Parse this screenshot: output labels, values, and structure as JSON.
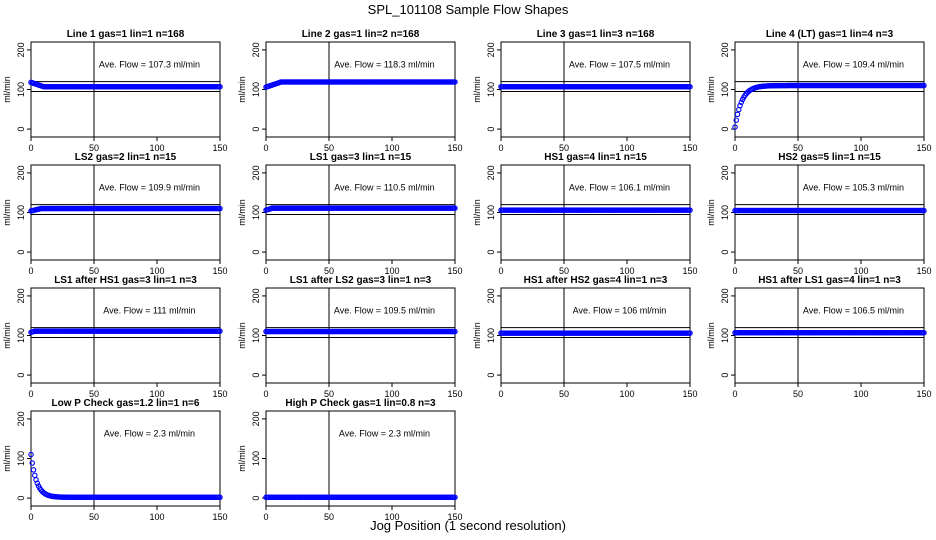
{
  "figure": {
    "title": "SPL_101108  Sample Flow Shapes",
    "xlabel": "Jog Position (1 second resolution)"
  },
  "chart_data": [
    {
      "type": "scatter",
      "title": "Line 1 gas=1 lin=1 n=168",
      "ylabel": "ml/min",
      "annotation": "Ave. Flow =  107.3  ml/min",
      "xlim": [
        0,
        150
      ],
      "ylim": [
        -20,
        220
      ],
      "xticks": [
        0,
        50,
        100,
        150
      ],
      "yticks": [
        0,
        100,
        200
      ],
      "vline": 50,
      "hlines": [
        95,
        120
      ],
      "profile": {
        "kind": "flat",
        "start": 118,
        "plateau": 107,
        "steps": 10
      }
    },
    {
      "type": "scatter",
      "title": "Line 2 gas=1 lin=2 n=168",
      "ylabel": "ml/min",
      "annotation": "Ave. Flow =  118.3  ml/min",
      "xlim": [
        0,
        150
      ],
      "ylim": [
        -20,
        220
      ],
      "xticks": [
        0,
        50,
        100,
        150
      ],
      "yticks": [
        0,
        100,
        200
      ],
      "vline": 50,
      "hlines": [],
      "profile": {
        "kind": "flat",
        "start": 106,
        "plateau": 119,
        "steps": 12
      }
    },
    {
      "type": "scatter",
      "title": "Line 3 gas=1 lin=3 n=168",
      "ylabel": "ml/min",
      "annotation": "Ave. Flow =  107.5  ml/min",
      "xlim": [
        0,
        150
      ],
      "ylim": [
        -20,
        220
      ],
      "xticks": [
        0,
        50,
        100,
        150
      ],
      "yticks": [
        0,
        100,
        200
      ],
      "vline": 50,
      "hlines": [
        95,
        120
      ],
      "profile": {
        "kind": "flat",
        "start": 107,
        "plateau": 107,
        "steps": 1
      }
    },
    {
      "type": "scatter",
      "title": "Line 4 (LT) gas=1 lin=4 n=3",
      "ylabel": "ml/min",
      "annotation": "Ave. Flow =  109.4  ml/min",
      "xlim": [
        0,
        150
      ],
      "ylim": [
        -20,
        220
      ],
      "xticks": [
        0,
        50,
        100,
        150
      ],
      "yticks": [
        0,
        100,
        200
      ],
      "vline": 50,
      "hlines": [
        95,
        120
      ],
      "profile": {
        "kind": "rise",
        "start": 5,
        "plateau": 110,
        "steps": 22
      }
    },
    {
      "type": "scatter",
      "title": "LS2 gas=2 lin=1 n=15",
      "ylabel": "ml/min",
      "annotation": "Ave. Flow =  109.9  ml/min",
      "xlim": [
        0,
        150
      ],
      "ylim": [
        -20,
        220
      ],
      "xticks": [
        0,
        50,
        100,
        150
      ],
      "yticks": [
        0,
        100,
        200
      ],
      "vline": 50,
      "hlines": [
        95,
        120
      ],
      "profile": {
        "kind": "flat",
        "start": 104,
        "plateau": 110,
        "steps": 8
      }
    },
    {
      "type": "scatter",
      "title": "LS1 gas=3 lin=1 n=15",
      "ylabel": "ml/min",
      "annotation": "Ave. Flow =  110.5  ml/min",
      "xlim": [
        0,
        150
      ],
      "ylim": [
        -20,
        220
      ],
      "xticks": [
        0,
        50,
        100,
        150
      ],
      "yticks": [
        0,
        100,
        200
      ],
      "vline": 50,
      "hlines": [
        95,
        120
      ],
      "profile": {
        "kind": "flat",
        "start": 106,
        "plateau": 111,
        "steps": 5
      }
    },
    {
      "type": "scatter",
      "title": "HS1 gas=4 lin=1 n=15",
      "ylabel": "ml/min",
      "annotation": "Ave. Flow =  106.1  ml/min",
      "xlim": [
        0,
        150
      ],
      "ylim": [
        -20,
        220
      ],
      "xticks": [
        0,
        50,
        100,
        150
      ],
      "yticks": [
        0,
        100,
        200
      ],
      "vline": 50,
      "hlines": [
        95,
        120
      ],
      "profile": {
        "kind": "flat",
        "start": 106,
        "plateau": 106,
        "steps": 1
      }
    },
    {
      "type": "scatter",
      "title": "HS2 gas=5 lin=1 n=15",
      "ylabel": "ml/min",
      "annotation": "Ave. Flow =  105.3  ml/min",
      "xlim": [
        0,
        150
      ],
      "ylim": [
        -20,
        220
      ],
      "xticks": [
        0,
        50,
        100,
        150
      ],
      "yticks": [
        0,
        100,
        200
      ],
      "vline": 50,
      "hlines": [
        95,
        120
      ],
      "profile": {
        "kind": "flat",
        "start": 105,
        "plateau": 105,
        "steps": 1
      }
    },
    {
      "type": "scatter",
      "title": "LS1 after HS1 gas=3 lin=1 n=3",
      "ylabel": "ml/min",
      "annotation": "Ave. Flow =  111  ml/min",
      "xlim": [
        0,
        150
      ],
      "ylim": [
        -20,
        220
      ],
      "xticks": [
        0,
        50,
        100,
        150
      ],
      "yticks": [
        0,
        100,
        200
      ],
      "vline": 50,
      "hlines": [
        95,
        120
      ],
      "profile": {
        "kind": "flat",
        "start": 108,
        "plateau": 111,
        "steps": 3
      }
    },
    {
      "type": "scatter",
      "title": "LS1 after LS2 gas=3 lin=1 n=3",
      "ylabel": "ml/min",
      "annotation": "Ave. Flow =  109.5  ml/min",
      "xlim": [
        0,
        150
      ],
      "ylim": [
        -20,
        220
      ],
      "xticks": [
        0,
        50,
        100,
        150
      ],
      "yticks": [
        0,
        100,
        200
      ],
      "vline": 50,
      "hlines": [
        95,
        120
      ],
      "profile": {
        "kind": "flat",
        "start": 110,
        "plateau": 110,
        "steps": 1
      }
    },
    {
      "type": "scatter",
      "title": "HS1 after HS2 gas=4 lin=1 n=3",
      "ylabel": "ml/min",
      "annotation": "Ave. Flow =  106  ml/min",
      "xlim": [
        0,
        150
      ],
      "ylim": [
        -20,
        220
      ],
      "xticks": [
        0,
        50,
        100,
        150
      ],
      "yticks": [
        0,
        100,
        200
      ],
      "vline": 50,
      "hlines": [
        95,
        120
      ],
      "profile": {
        "kind": "flat",
        "start": 106,
        "plateau": 106,
        "steps": 1
      }
    },
    {
      "type": "scatter",
      "title": "HS1 after LS1 gas=4 lin=1 n=3",
      "ylabel": "ml/min",
      "annotation": "Ave. Flow =  106.5  ml/min",
      "xlim": [
        0,
        150
      ],
      "ylim": [
        -20,
        220
      ],
      "xticks": [
        0,
        50,
        100,
        150
      ],
      "yticks": [
        0,
        100,
        200
      ],
      "vline": 50,
      "hlines": [
        95,
        120
      ],
      "profile": {
        "kind": "flat",
        "start": 107,
        "plateau": 107,
        "steps": 1
      }
    },
    {
      "type": "scatter",
      "title": "Low P Check gas=1.2 lin=1 n=6",
      "ylabel": "ml/min",
      "annotation": "Ave. Flow =  2.3  ml/min",
      "xlim": [
        0,
        150
      ],
      "ylim": [
        -20,
        220
      ],
      "xticks": [
        0,
        50,
        100,
        150
      ],
      "yticks": [
        0,
        100,
        200
      ],
      "vline": 50,
      "hlines": [],
      "profile": {
        "kind": "decay",
        "start": 110,
        "plateau": 2,
        "steps": 18
      }
    },
    {
      "type": "scatter",
      "title": "High P Check gas=1 lin=0.8 n=3",
      "ylabel": "ml/min",
      "annotation": "Ave. Flow =  2.3  ml/min",
      "xlim": [
        0,
        150
      ],
      "ylim": [
        -20,
        220
      ],
      "xticks": [
        0,
        50,
        100,
        150
      ],
      "yticks": [
        0,
        100,
        200
      ],
      "vline": 50,
      "hlines": [],
      "profile": {
        "kind": "flat",
        "start": 2,
        "plateau": 2,
        "steps": 1
      }
    }
  ],
  "colors": {
    "points": "#0000ff",
    "axes": "#000000",
    "background": "#ffffff"
  }
}
